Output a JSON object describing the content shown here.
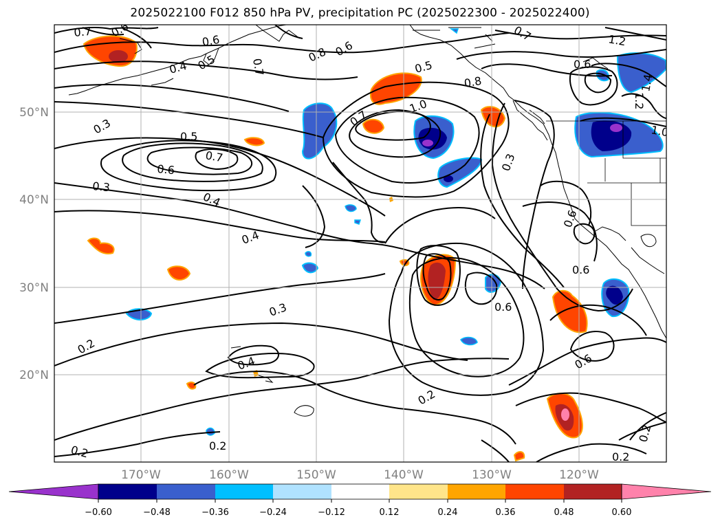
{
  "title": "2025022100 F012 850 hPa PV, precipitation PC (2025022300 - 2025022400)",
  "map": {
    "lat_labels": [
      "50°N",
      "40°N",
      "30°N",
      "20°N"
    ],
    "lon_labels": [
      "170°W",
      "160°W",
      "150°W",
      "140°W",
      "130°W",
      "120°W"
    ],
    "contour_labels": [
      "0.7",
      "0.6",
      "0.6",
      "0.4",
      "0.5",
      "0.7",
      "0.8",
      "0.6",
      "0.5",
      "0.8",
      "1.0",
      "0.7",
      "0.7",
      "1.2",
      "0.6",
      "1.2",
      "1.4",
      "1.0",
      "0.3",
      "0.5",
      "0.7",
      "0.6",
      "0.3",
      "0.4",
      "0.3",
      "0.6",
      "0.4",
      "0.6",
      "0.3",
      "0.6",
      "0.2",
      "0.4",
      "0.6",
      "0.2",
      "0.2",
      "0.2",
      "0.2",
      "0.2"
    ]
  },
  "colorbar": {
    "ticks": [
      "−0.60",
      "−0.48",
      "−0.36",
      "−0.24",
      "−0.12",
      "0.12",
      "0.24",
      "0.36",
      "0.48",
      "0.60"
    ],
    "colors": [
      "#9932cc",
      "#00008b",
      "#3a5fcd",
      "#00bfff",
      "#b0e2ff",
      "#ffffff",
      "#ffe58a",
      "#ffa500",
      "#ff4500",
      "#b22222",
      "#ff82ab"
    ]
  }
}
